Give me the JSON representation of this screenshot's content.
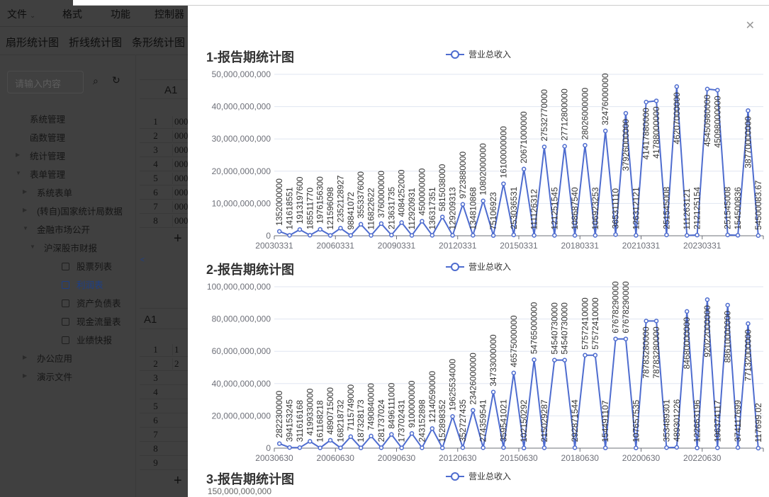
{
  "menu": {
    "items": [
      "文件",
      "格式",
      "功能",
      "控制器"
    ]
  },
  "chart_tabs": [
    "扇形统计图",
    "折线统计图",
    "条形统计图"
  ],
  "sidebar": {
    "search_placeholder": "请输入内容",
    "tree": [
      {
        "label": "系统管理",
        "level": 1,
        "caret": "none"
      },
      {
        "label": "函数管理",
        "level": 1,
        "caret": "none"
      },
      {
        "label": "统计管理",
        "level": 1,
        "caret": "collapsed"
      },
      {
        "label": "表单管理",
        "level": 1,
        "caret": "expanded"
      },
      {
        "label": "系统表单",
        "level": 2,
        "caret": "collapsed"
      },
      {
        "label": "(转自)国家统计局数据",
        "level": 2,
        "caret": "collapsed"
      },
      {
        "label": "金融市场公开",
        "level": 2,
        "caret": "expanded"
      },
      {
        "label": "沪深股市财报",
        "level": 3,
        "caret": "expanded"
      },
      {
        "label": "股票列表",
        "level": 4,
        "caret": "file"
      },
      {
        "label": "利润表",
        "level": 4,
        "caret": "file",
        "active": true
      },
      {
        "label": "资产负债表",
        "level": 4,
        "caret": "file"
      },
      {
        "label": "现金流量表",
        "level": 4,
        "caret": "file"
      },
      {
        "label": "业绩快报",
        "level": 4,
        "caret": "file"
      },
      {
        "label": "办公应用",
        "level": 2,
        "caret": "collapsed"
      },
      {
        "label": "演示文件",
        "level": 2,
        "caret": "collapsed"
      }
    ]
  },
  "sheet1": {
    "cell_ref": "A1",
    "rows": [
      "1",
      "2",
      "3",
      "4",
      "5",
      "6",
      "7",
      "8"
    ],
    "values": [
      "000",
      "000",
      "000",
      "000",
      "000",
      "000",
      "000",
      "000"
    ]
  },
  "sheet2": {
    "cell_ref": "A1",
    "rows": [
      "1",
      "2",
      "3",
      "4",
      "5",
      "6",
      "7",
      "8",
      "9"
    ],
    "values": [
      "1",
      "2",
      "",
      "",
      "",
      "",
      "",
      "",
      ""
    ]
  },
  "colors": {
    "series": "#4e6ccf",
    "accent": "#2a5fd0"
  },
  "drawer": {
    "close_icon": "close-icon"
  },
  "chart_data": [
    {
      "type": "line",
      "title": "1-报告期统计图",
      "legend": "营业总收入",
      "legend_position": "top",
      "ylim": [
        0,
        50000000000
      ],
      "y_ticks": [
        "0",
        "10,000,000,000",
        "20,000,000,000",
        "30,000,000,000",
        "40,000,000,000",
        "50,000,000,000"
      ],
      "x_tick_labels": [
        "20030331",
        "20060331",
        "20090331",
        "20120331",
        "20150331",
        "20180331",
        "20210331",
        "20230331"
      ],
      "grid": true,
      "series": [
        {
          "name": "营业总收入",
          "values": [
            1352000000,
            141618551,
            1913197600,
            185511770,
            1976156300,
            121596098,
            2352128927,
            98841072,
            3553376000,
            116822622,
            3760000000,
            213631735,
            4084252000,
            112920931,
            4500000000,
            136317351,
            5815038000,
            129209313,
            9723880000,
            134810868,
            10802000000,
            75106923,
            16100000000,
            253036531,
            20671000000,
            111126312,
            27532770000,
            121251545,
            27712800000,
            108687540,
            28026000000,
            106923253,
            32476000000,
            365311110,
            37926000000,
            126312121,
            41417880000,
            41788000000,
            251545008,
            46207000000,
            111263121,
            212125154,
            45450980000,
            45098000000,
            251545008,
            154500836,
            38770000000,
            54500083.67
          ]
        }
      ]
    },
    {
      "type": "line",
      "title": "2-报告期统计图",
      "legend": "营业总收入",
      "legend_position": "top",
      "ylim": [
        0,
        100000000000
      ],
      "y_ticks": [
        "0",
        "20,000,000,000",
        "40,000,000,000",
        "60,000,000,000",
        "80,000,000,000",
        "100,000,000,000"
      ],
      "x_tick_labels": [
        "20030630",
        "20060630",
        "20090630",
        "20120630",
        "20150630",
        "20180630",
        "20200630",
        "20220630"
      ],
      "grid": true,
      "series": [
        {
          "name": "营业总收入",
          "values": [
            2822300000,
            394153245,
            311616168,
            4199330000,
            161168218,
            4890715000,
            168218732,
            7115749000,
            187328173,
            7490840000,
            281737024,
            8496111000,
            173702431,
            9100000000,
            243152898,
            12140590000,
            152898352,
            19625534000,
            352727435,
            23426000000,
            274359541,
            34733000000,
            359541021,
            46575000000,
            102150292,
            54765000000,
            215029287,
            54540730000,
            54540730000,
            292871544,
            57572410000,
            57572410000,
            154491107,
            67678290000,
            67678290000,
            107657535,
            78783280000,
            78783280000,
            353489301,
            489301226,
            84680000000,
            122663196,
            92022000000,
            196374117,
            88610000000,
            374117699,
            77132000000,
            117699.02
          ]
        }
      ]
    },
    {
      "type": "line",
      "title": "3-报告期统计图",
      "legend": "营业总收入",
      "legend_position": "top",
      "y_ticks": [
        "150,000,000,000"
      ],
      "series": []
    }
  ]
}
